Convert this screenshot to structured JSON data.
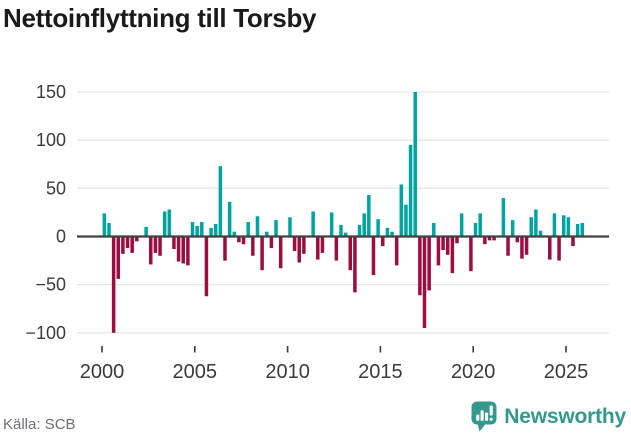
{
  "page": {
    "background": "#ffffff"
  },
  "header": {
    "title": "Nettoinflyttning till Torsby"
  },
  "footer": {
    "source": "Källa: SCB",
    "brand_name": "Newsworthy"
  },
  "colors": {
    "positive": "#00a4a0",
    "negative": "#9d0d41",
    "gridline": "#e7e7e7",
    "zero_axis": "#404040",
    "axis_label": "#3b3b3b",
    "title": "#1a1a1a",
    "source_gray": "#6e6e78",
    "brand_teal": "#35988f"
  },
  "chart_data": {
    "type": "bar",
    "title": "Nettoinflyttning till Torsby",
    "x_start": "2000-Q1",
    "x_step": "quarter",
    "x_ticks": [
      2000,
      2005,
      2010,
      2015,
      2020,
      2025
    ],
    "y_ticks": [
      150,
      100,
      50,
      0,
      -50,
      -100
    ],
    "y_tick_labels": [
      "150",
      "100",
      "50",
      "0",
      "−50",
      "−100"
    ],
    "ylim": [
      -110,
      160
    ],
    "grid": "horizontal",
    "legend": "none",
    "xlabel": "",
    "ylabel": "",
    "values": [
      24,
      14,
      -100,
      -44,
      -18,
      -12,
      -17,
      -5,
      0,
      10,
      -29,
      -17,
      -20,
      26,
      28,
      -13,
      -26,
      -28,
      -30,
      15,
      11,
      15,
      -62,
      9,
      13,
      73,
      -25,
      36,
      5,
      -6,
      -8,
      15,
      -20,
      21,
      -35,
      5,
      -12,
      17,
      -33,
      0,
      20,
      -15,
      -27,
      -18,
      0,
      26,
      -24,
      -17,
      0,
      25,
      -25,
      12,
      4,
      -35,
      -58,
      12,
      24,
      43,
      -40,
      18,
      -10,
      9,
      5,
      -30,
      54,
      33,
      95,
      150,
      -61,
      -95,
      -56,
      14,
      -30,
      -14,
      -19,
      -38,
      -7,
      24,
      0,
      -36,
      14,
      24,
      -8,
      -4,
      -4,
      0,
      40,
      -20,
      17,
      -6,
      -23,
      -19,
      20,
      28,
      6,
      0,
      -24,
      24,
      -25,
      22,
      20,
      -10,
      13,
      14
    ]
  }
}
